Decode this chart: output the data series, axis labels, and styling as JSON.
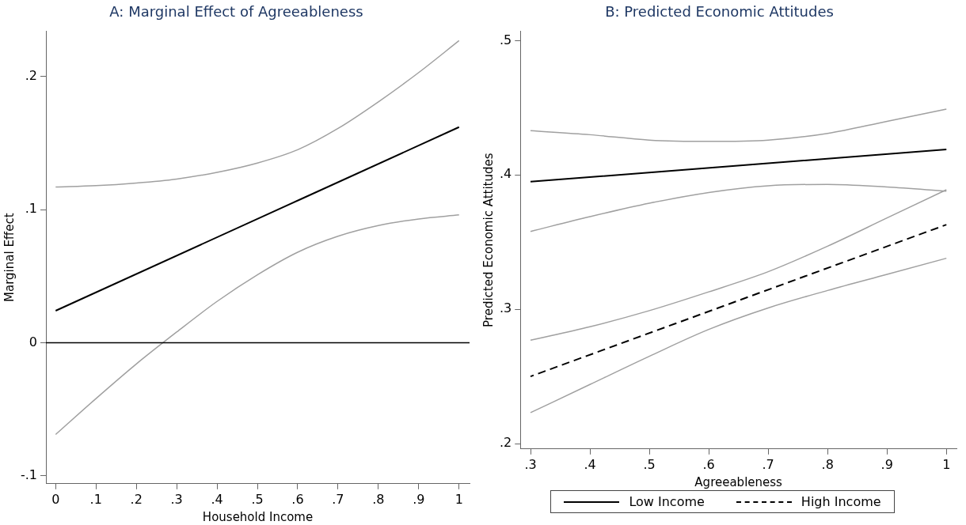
{
  "chart_data": [
    {
      "type": "line",
      "title": "A: Marginal Effect of Agreeableness",
      "xlabel": "Household Income",
      "ylabel": "Marginal Effect",
      "grid": false,
      "legend": false,
      "marker": "none",
      "x": [
        0,
        0.1,
        0.2,
        0.3,
        0.4,
        0.5,
        0.6,
        0.7,
        0.8,
        0.9,
        1
      ],
      "xlim": [
        -0.024,
        1.026
      ],
      "xticks": [
        {
          "value": 0,
          "label": "0"
        },
        {
          "value": 0.1,
          "label": ".1"
        },
        {
          "value": 0.2,
          "label": ".2"
        },
        {
          "value": 0.3,
          "label": ".3"
        },
        {
          "value": 0.4,
          "label": ".4"
        },
        {
          "value": 0.5,
          "label": ".5"
        },
        {
          "value": 0.6,
          "label": ".6"
        },
        {
          "value": 0.7,
          "label": ".7"
        },
        {
          "value": 0.8,
          "label": ".8"
        },
        {
          "value": 0.9,
          "label": ".9"
        },
        {
          "value": 1,
          "label": "1"
        }
      ],
      "ylim": [
        -0.106,
        0.234
      ],
      "yticks": [
        {
          "value": -0.1,
          "label": "-.1"
        },
        {
          "value": 0,
          "label": "0"
        },
        {
          "value": 0.1,
          "label": ".1"
        },
        {
          "value": 0.2,
          "label": ".2"
        }
      ],
      "ref_lines": [
        {
          "axis": "y",
          "value": 0,
          "color": "#000000"
        }
      ],
      "series": [
        {
          "color": "#a0a0a0",
          "values": [
            0.117,
            0.118,
            0.12,
            0.123,
            0.128,
            0.135,
            0.145,
            0.161,
            0.181,
            0.203,
            0.227
          ]
        },
        {
          "color": "#a0a0a0",
          "values": [
            -0.069,
            -0.042,
            -0.016,
            0.008,
            0.031,
            0.051,
            0.068,
            0.08,
            0.088,
            0.093,
            0.096
          ]
        },
        {
          "color": "#000000",
          "x": [
            0,
            1
          ],
          "values": [
            0.024,
            0.162
          ]
        }
      ]
    },
    {
      "type": "line",
      "title": "B: Predicted Economic Attitudes",
      "xlabel": "Agreeableness",
      "ylabel": "Predicted Economic Attitudes",
      "grid": false,
      "legend": "bottom",
      "marker": "none",
      "x": [
        0.3,
        0.4,
        0.5,
        0.6,
        0.7,
        0.8,
        0.9,
        1
      ],
      "xlim": [
        0.283,
        1.017
      ],
      "xticks": [
        {
          "value": 0.3,
          "label": ".3"
        },
        {
          "value": 0.4,
          "label": ".4"
        },
        {
          "value": 0.5,
          "label": ".5"
        },
        {
          "value": 0.6,
          "label": ".6"
        },
        {
          "value": 0.7,
          "label": ".7"
        },
        {
          "value": 0.8,
          "label": ".8"
        },
        {
          "value": 0.9,
          "label": ".9"
        },
        1
      ],
      "ylim": [
        0.196,
        0.507
      ],
      "yticks": [
        {
          "value": 0.2,
          "label": ".2"
        },
        {
          "value": 0.3,
          "label": ".3"
        },
        {
          "value": 0.4,
          "label": ".4"
        },
        {
          "value": 0.5,
          "label": ".5"
        }
      ],
      "series": [
        {
          "color": "#a0a0a0",
          "values": [
            0.433,
            0.43,
            0.426,
            0.425,
            0.426,
            0.431,
            0.44,
            0.449
          ]
        },
        {
          "color": "#a0a0a0",
          "values": [
            0.358,
            0.369,
            0.379,
            0.387,
            0.392,
            0.393,
            0.391,
            0.388
          ]
        },
        {
          "color": "#a0a0a0",
          "values": [
            0.277,
            0.287,
            0.299,
            0.313,
            0.328,
            0.347,
            0.368,
            0.389
          ]
        },
        {
          "color": "#a0a0a0",
          "values": [
            0.223,
            0.244,
            0.265,
            0.285,
            0.301,
            0.314,
            0.326,
            0.338
          ]
        },
        {
          "name": "Low Income",
          "color": "#000000",
          "line_style": "solid",
          "x": [
            0.3,
            1
          ],
          "values": [
            0.395,
            0.419
          ]
        },
        {
          "name": "High Income",
          "color": "#000000",
          "line_style": "dashed",
          "x": [
            0.3,
            1
          ],
          "values": [
            0.25,
            0.363
          ]
        }
      ]
    }
  ]
}
